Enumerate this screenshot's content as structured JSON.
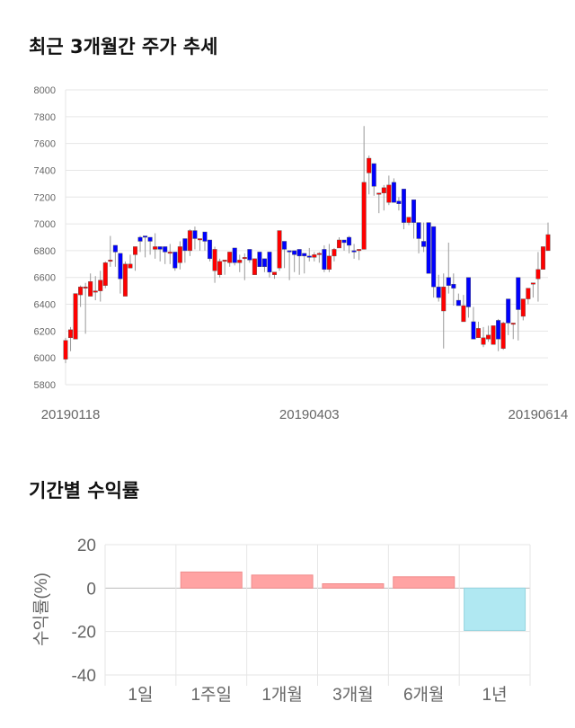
{
  "section1_title": "최근 3개월간 주가 추세",
  "section2_title": "기간별 수익률",
  "chart_data": [
    {
      "type": "candlestick",
      "ylim": [
        5800,
        8000
      ],
      "yticks": [
        8000,
        7800,
        7600,
        7400,
        7200,
        7000,
        6800,
        6600,
        6400,
        6200,
        6000,
        5800
      ],
      "xtick_labels": [
        "20190118",
        "20190403",
        "20190614"
      ],
      "xtick_index": [
        1,
        49,
        95
      ],
      "grid": true,
      "colors": {
        "up": "#ff0000",
        "down": "#0000ff",
        "wick": "#999999"
      },
      "ohlc": [
        [
          5990,
          6150,
          5960,
          6130
        ],
        [
          6150,
          6230,
          6050,
          6210
        ],
        [
          6140,
          6480,
          6140,
          6480
        ],
        [
          6470,
          6540,
          6380,
          6530
        ],
        [
          6530,
          6560,
          6180,
          6530
        ],
        [
          6460,
          6630,
          6460,
          6570
        ],
        [
          6500,
          6610,
          6430,
          6500
        ],
        [
          6500,
          6650,
          6420,
          6580
        ],
        [
          6540,
          6720,
          6520,
          6710
        ],
        [
          6730,
          6910,
          6680,
          6730
        ],
        [
          6840,
          6840,
          6680,
          6790
        ],
        [
          6780,
          6780,
          6480,
          6590
        ],
        [
          6460,
          6720,
          6460,
          6700
        ],
        [
          6670,
          6770,
          6670,
          6700
        ],
        [
          6770,
          6830,
          6650,
          6830
        ],
        [
          6900,
          6910,
          6790,
          6870
        ],
        [
          6910,
          6910,
          6750,
          6900
        ],
        [
          6900,
          6900,
          6770,
          6870
        ],
        [
          6810,
          6930,
          6740,
          6830
        ],
        [
          6830,
          6830,
          6720,
          6810
        ],
        [
          6830,
          6830,
          6700,
          6790
        ],
        [
          6790,
          6850,
          6700,
          6790
        ],
        [
          6790,
          6790,
          6650,
          6670
        ],
        [
          6710,
          6870,
          6660,
          6830
        ],
        [
          6890,
          6890,
          6710,
          6800
        ],
        [
          6800,
          6960,
          6760,
          6950
        ],
        [
          6950,
          6980,
          6810,
          6890
        ],
        [
          6880,
          6890,
          6800,
          6890
        ],
        [
          6940,
          6940,
          6800,
          6870
        ],
        [
          6880,
          6880,
          6720,
          6740
        ],
        [
          6650,
          6830,
          6560,
          6810
        ],
        [
          6620,
          6740,
          6600,
          6720
        ],
        [
          6730,
          6730,
          6620,
          6730
        ],
        [
          6710,
          6790,
          6680,
          6790
        ],
        [
          6820,
          6820,
          6690,
          6710
        ],
        [
          6710,
          6770,
          6640,
          6730
        ],
        [
          6740,
          6780,
          6580,
          6750
        ],
        [
          6810,
          6810,
          6710,
          6730
        ],
        [
          6620,
          6740,
          6620,
          6740
        ],
        [
          6790,
          6790,
          6680,
          6680
        ],
        [
          6740,
          6740,
          6640,
          6680
        ],
        [
          6790,
          6790,
          6600,
          6640
        ],
        [
          6620,
          6640,
          6590,
          6640
        ],
        [
          6670,
          6950,
          6650,
          6950
        ],
        [
          6870,
          6870,
          6670,
          6810
        ],
        [
          6800,
          6800,
          6580,
          6790
        ],
        [
          6800,
          6800,
          6640,
          6770
        ],
        [
          6810,
          6810,
          6620,
          6760
        ],
        [
          6780,
          6780,
          6630,
          6760
        ],
        [
          6760,
          6820,
          6720,
          6750
        ],
        [
          6750,
          6790,
          6720,
          6770
        ],
        [
          6780,
          6790,
          6710,
          6780
        ],
        [
          6810,
          6840,
          6640,
          6660
        ],
        [
          6660,
          6850,
          6640,
          6760
        ],
        [
          6760,
          6820,
          6720,
          6810
        ],
        [
          6820,
          6900,
          6820,
          6880
        ],
        [
          6880,
          6880,
          6800,
          6860
        ],
        [
          6900,
          6910,
          6780,
          6840
        ],
        [
          6800,
          6850,
          6740,
          6790
        ],
        [
          6800,
          6810,
          6730,
          6810
        ],
        [
          6810,
          7730,
          6810,
          7310
        ],
        [
          7380,
          7510,
          7220,
          7490
        ],
        [
          7450,
          7450,
          7210,
          7280
        ],
        [
          7230,
          7230,
          7080,
          7230
        ],
        [
          7230,
          7290,
          7100,
          7270
        ],
        [
          7160,
          7360,
          7140,
          7290
        ],
        [
          7310,
          7340,
          7160,
          7160
        ],
        [
          7170,
          7200,
          7100,
          7150
        ],
        [
          7260,
          7260,
          6960,
          7010
        ],
        [
          7010,
          7050,
          6990,
          7050
        ],
        [
          7180,
          7180,
          6890,
          7010
        ],
        [
          7010,
          7010,
          6780,
          6890
        ],
        [
          6870,
          7010,
          6790,
          6830
        ],
        [
          7010,
          7010,
          6630,
          6630
        ],
        [
          6980,
          6980,
          6450,
          6530
        ],
        [
          6530,
          6620,
          6420,
          6450
        ],
        [
          6350,
          6630,
          6070,
          6530
        ],
        [
          6600,
          6860,
          6480,
          6540
        ],
        [
          6550,
          6630,
          6390,
          6520
        ],
        [
          6430,
          6480,
          6390,
          6390
        ],
        [
          6270,
          6470,
          6270,
          6390
        ],
        [
          6600,
          6600,
          6300,
          6380
        ],
        [
          6270,
          6380,
          6140,
          6140
        ],
        [
          6150,
          6270,
          6150,
          6220
        ],
        [
          6100,
          6230,
          6080,
          6150
        ],
        [
          6140,
          6240,
          6120,
          6170
        ],
        [
          6100,
          6240,
          6100,
          6240
        ],
        [
          6280,
          6290,
          6050,
          6140
        ],
        [
          6070,
          6270,
          6060,
          6260
        ],
        [
          6440,
          6440,
          6170,
          6260
        ],
        [
          6260,
          6260,
          6140,
          6260
        ],
        [
          6600,
          6600,
          6130,
          6360
        ],
        [
          6310,
          6440,
          6280,
          6440
        ],
        [
          6440,
          6520,
          6400,
          6520
        ],
        [
          6550,
          6560,
          6450,
          6560
        ],
        [
          6590,
          6790,
          6420,
          6660
        ],
        [
          6660,
          6830,
          6660,
          6830
        ],
        [
          6800,
          7010,
          6800,
          6920
        ]
      ]
    },
    {
      "type": "bar",
      "categories": [
        "1일",
        "1주일",
        "1개월",
        "3개월",
        "6개월",
        "1년"
      ],
      "values": [
        0,
        7.4,
        6.0,
        2.0,
        5.2,
        -19.5
      ],
      "ylabel": "수익률(%)",
      "ylim": [
        -40,
        20
      ],
      "yticks": [
        20,
        0,
        -20,
        -40
      ],
      "grid": true,
      "colors": {
        "positive": "#ffa3a3",
        "negative": "#b0e8f2"
      }
    }
  ]
}
